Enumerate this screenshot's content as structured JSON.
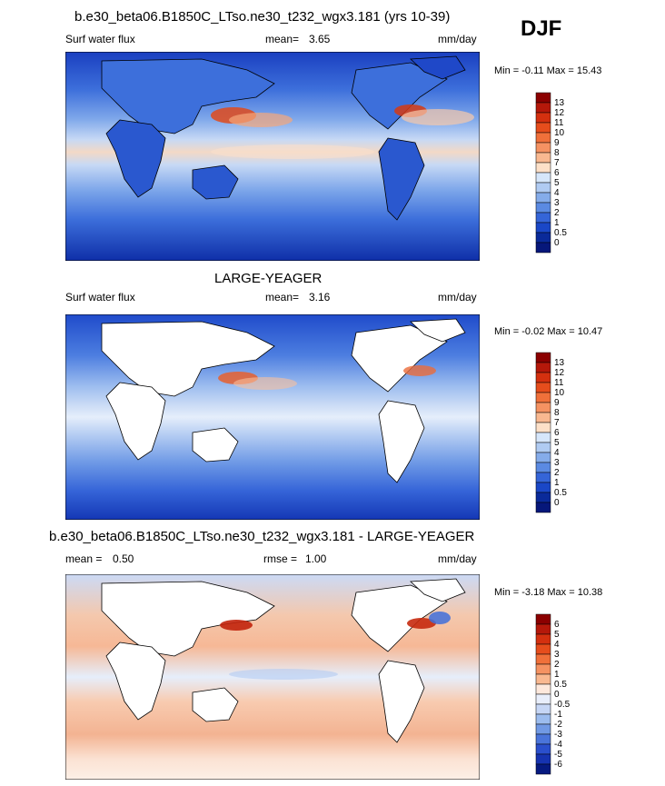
{
  "header": {
    "title": "b.e30_beta06.B1850C_LTso.ne30_t232_wgx3.181 (yrs 10-39)",
    "season": "DJF"
  },
  "panel1": {
    "variable": "Surf water flux",
    "mean_label": "mean=",
    "mean_value": "3.65",
    "units": "mm/day",
    "minmax": "Min =  -0.11 Max =  15.43"
  },
  "panel2": {
    "title": "LARGE-YEAGER",
    "variable": "Surf water flux",
    "mean_label": "mean=",
    "mean_value": "3.16",
    "units": "mm/day",
    "minmax": "Min =  -0.02 Max =  10.47"
  },
  "panel3": {
    "title": "b.e30_beta06.B1850C_LTso.ne30_t232_wgx3.181 - LARGE-YEAGER",
    "mean_label": "mean =",
    "mean_value": "0.50",
    "rmse_label": "rmse =",
    "rmse_value": "1.00",
    "units": "mm/day",
    "minmax": "Min =  -3.18 Max =  10.38"
  },
  "colorbar_abs": {
    "levels": [
      "13",
      "12",
      "11",
      "10",
      "9",
      "8",
      "7",
      "6",
      "5",
      "4",
      "3",
      "2",
      "1",
      "0.5",
      "0"
    ],
    "colors": [
      "#8b0000",
      "#b5180a",
      "#d4300f",
      "#e64d1c",
      "#f0703a",
      "#f59262",
      "#f9b890",
      "#fde0c8",
      "#d6e6fa",
      "#b0cbf2",
      "#85acea",
      "#5b8ae2",
      "#3565d8",
      "#1a47c7",
      "#0a2a9a",
      "#06177a"
    ]
  },
  "colorbar_diff": {
    "levels": [
      "6",
      "5",
      "4",
      "3",
      "2",
      "1",
      "0.5",
      "0",
      "-0.5",
      "-1",
      "-2",
      "-3",
      "-4",
      "-5",
      "-6"
    ],
    "colors": [
      "#8b0000",
      "#b5180a",
      "#d4300f",
      "#e64d1c",
      "#f0703a",
      "#f59262",
      "#f9b890",
      "#fde8dc",
      "#e8eefb",
      "#c6d6f5",
      "#9cbcee",
      "#7199e4",
      "#4a74da",
      "#2a4fcc",
      "#1633b0",
      "#061a80"
    ]
  }
}
